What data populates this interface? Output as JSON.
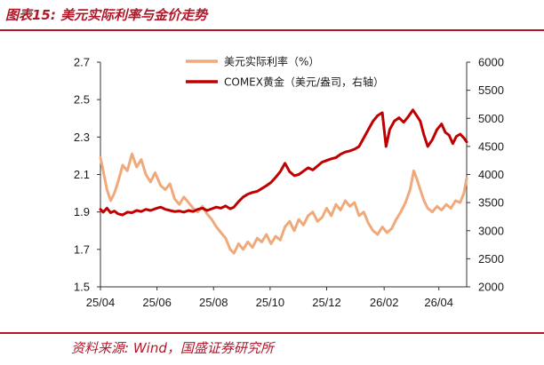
{
  "figure": {
    "title": "图表15:  美元实际利率与金价走势",
    "source": "资料来源:  Wind，国盛证券研究所"
  },
  "colors": {
    "accent": "#b0182a",
    "real_rate": "#f0a97a",
    "gold": "#c00000"
  },
  "chart_data": {
    "type": "line",
    "x_labels": [
      "25/04",
      "25/06",
      "25/08",
      "25/10",
      "25/12",
      "26/02",
      "26/04"
    ],
    "x_range": [
      "2025-04-01",
      "2026-05-01"
    ],
    "left_axis": {
      "ylim": [
        1.5,
        2.7
      ],
      "ticks": [
        "2.7",
        "2.5",
        "2.3",
        "2.1",
        "1.9",
        "1.7",
        "1.5"
      ]
    },
    "right_axis": {
      "ylim": [
        2000,
        6000
      ],
      "ticks": [
        "6000",
        "5500",
        "5000",
        "4500",
        "4000",
        "3500",
        "3000",
        "2500",
        "2000"
      ]
    },
    "legend_position": "top-center",
    "series": [
      {
        "name": "美元实际利率（%）",
        "axis": "left",
        "points": [
          [
            "2025-04-01",
            2.19
          ],
          [
            "2025-04-04",
            2.12
          ],
          [
            "2025-04-08",
            2.02
          ],
          [
            "2025-04-12",
            1.96
          ],
          [
            "2025-04-16",
            2.0
          ],
          [
            "2025-04-20",
            2.06
          ],
          [
            "2025-04-25",
            2.15
          ],
          [
            "2025-04-30",
            2.12
          ],
          [
            "2025-05-05",
            2.21
          ],
          [
            "2025-05-10",
            2.14
          ],
          [
            "2025-05-15",
            2.18
          ],
          [
            "2025-05-20",
            2.1
          ],
          [
            "2025-05-25",
            2.06
          ],
          [
            "2025-05-30",
            2.11
          ],
          [
            "2025-06-05",
            2.04
          ],
          [
            "2025-06-10",
            2.02
          ],
          [
            "2025-06-15",
            2.05
          ],
          [
            "2025-06-20",
            1.97
          ],
          [
            "2025-06-25",
            1.94
          ],
          [
            "2025-06-30",
            1.98
          ],
          [
            "2025-07-05",
            1.95
          ],
          [
            "2025-07-10",
            1.92
          ],
          [
            "2025-07-15",
            1.9
          ],
          [
            "2025-07-20",
            1.93
          ],
          [
            "2025-07-25",
            1.89
          ],
          [
            "2025-07-30",
            1.86
          ],
          [
            "2025-08-04",
            1.82
          ],
          [
            "2025-08-09",
            1.79
          ],
          [
            "2025-08-14",
            1.76
          ],
          [
            "2025-08-19",
            1.7
          ],
          [
            "2025-08-23",
            1.68
          ],
          [
            "2025-08-28",
            1.73
          ],
          [
            "2025-09-02",
            1.7
          ],
          [
            "2025-09-07",
            1.74
          ],
          [
            "2025-09-12",
            1.71
          ],
          [
            "2025-09-17",
            1.76
          ],
          [
            "2025-09-22",
            1.74
          ],
          [
            "2025-09-27",
            1.78
          ],
          [
            "2025-10-02",
            1.73
          ],
          [
            "2025-10-07",
            1.77
          ],
          [
            "2025-10-12",
            1.75
          ],
          [
            "2025-10-17",
            1.82
          ],
          [
            "2025-10-22",
            1.85
          ],
          [
            "2025-10-27",
            1.8
          ],
          [
            "2025-11-01",
            1.86
          ],
          [
            "2025-11-06",
            1.83
          ],
          [
            "2025-11-11",
            1.88
          ],
          [
            "2025-11-16",
            1.9
          ],
          [
            "2025-11-21",
            1.85
          ],
          [
            "2025-11-26",
            1.87
          ],
          [
            "2025-12-01",
            1.92
          ],
          [
            "2025-12-06",
            1.88
          ],
          [
            "2025-12-11",
            1.94
          ],
          [
            "2025-12-16",
            1.91
          ],
          [
            "2025-12-21",
            1.96
          ],
          [
            "2025-12-26",
            1.93
          ],
          [
            "2025-12-31",
            1.95
          ],
          [
            "2026-01-05",
            1.88
          ],
          [
            "2026-01-10",
            1.9
          ],
          [
            "2026-01-15",
            1.84
          ],
          [
            "2026-01-20",
            1.8
          ],
          [
            "2026-01-25",
            1.78
          ],
          [
            "2026-01-30",
            1.82
          ],
          [
            "2026-02-04",
            1.79
          ],
          [
            "2026-02-09",
            1.81
          ],
          [
            "2026-02-14",
            1.86
          ],
          [
            "2026-02-19",
            1.9
          ],
          [
            "2026-02-24",
            1.95
          ],
          [
            "2026-03-01",
            2.02
          ],
          [
            "2026-03-05",
            2.12
          ],
          [
            "2026-03-08",
            2.08
          ],
          [
            "2026-03-12",
            2.02
          ],
          [
            "2026-03-16",
            1.96
          ],
          [
            "2026-03-20",
            1.92
          ],
          [
            "2026-03-25",
            1.9
          ],
          [
            "2026-03-30",
            1.93
          ],
          [
            "2026-04-04",
            1.91
          ],
          [
            "2026-04-09",
            1.94
          ],
          [
            "2026-04-14",
            1.92
          ],
          [
            "2026-04-19",
            1.96
          ],
          [
            "2026-04-24",
            1.95
          ],
          [
            "2026-04-28",
            2.0
          ],
          [
            "2026-05-01",
            2.08
          ]
        ]
      },
      {
        "name": "COMEX黄金（美元/盎司，右轴）",
        "axis": "right",
        "points": [
          [
            "2025-04-01",
            3380
          ],
          [
            "2025-04-04",
            3330
          ],
          [
            "2025-04-08",
            3400
          ],
          [
            "2025-04-12",
            3320
          ],
          [
            "2025-04-16",
            3350
          ],
          [
            "2025-04-20",
            3300
          ],
          [
            "2025-04-25",
            3280
          ],
          [
            "2025-04-30",
            3330
          ],
          [
            "2025-05-05",
            3320
          ],
          [
            "2025-05-10",
            3360
          ],
          [
            "2025-05-15",
            3340
          ],
          [
            "2025-05-20",
            3380
          ],
          [
            "2025-05-25",
            3360
          ],
          [
            "2025-05-30",
            3390
          ],
          [
            "2025-06-05",
            3420
          ],
          [
            "2025-06-10",
            3380
          ],
          [
            "2025-06-15",
            3360
          ],
          [
            "2025-06-20",
            3340
          ],
          [
            "2025-06-25",
            3350
          ],
          [
            "2025-06-30",
            3330
          ],
          [
            "2025-07-05",
            3360
          ],
          [
            "2025-07-10",
            3340
          ],
          [
            "2025-07-15",
            3380
          ],
          [
            "2025-07-20",
            3400
          ],
          [
            "2025-07-25",
            3360
          ],
          [
            "2025-07-30",
            3390
          ],
          [
            "2025-08-04",
            3420
          ],
          [
            "2025-08-09",
            3400
          ],
          [
            "2025-08-14",
            3440
          ],
          [
            "2025-08-19",
            3390
          ],
          [
            "2025-08-23",
            3420
          ],
          [
            "2025-08-28",
            3520
          ],
          [
            "2025-09-02",
            3600
          ],
          [
            "2025-09-07",
            3650
          ],
          [
            "2025-09-12",
            3680
          ],
          [
            "2025-09-17",
            3700
          ],
          [
            "2025-09-22",
            3750
          ],
          [
            "2025-09-27",
            3800
          ],
          [
            "2025-10-02",
            3860
          ],
          [
            "2025-10-07",
            3950
          ],
          [
            "2025-10-12",
            4050
          ],
          [
            "2025-10-17",
            4200
          ],
          [
            "2025-10-22",
            4050
          ],
          [
            "2025-10-27",
            3980
          ],
          [
            "2025-11-01",
            4000
          ],
          [
            "2025-11-06",
            4060
          ],
          [
            "2025-11-11",
            4120
          ],
          [
            "2025-11-16",
            4080
          ],
          [
            "2025-11-21",
            4150
          ],
          [
            "2025-11-26",
            4220
          ],
          [
            "2025-12-01",
            4250
          ],
          [
            "2025-12-06",
            4280
          ],
          [
            "2025-12-11",
            4300
          ],
          [
            "2025-12-16",
            4360
          ],
          [
            "2025-12-21",
            4400
          ],
          [
            "2025-12-26",
            4420
          ],
          [
            "2025-12-31",
            4450
          ],
          [
            "2026-01-05",
            4500
          ],
          [
            "2026-01-10",
            4650
          ],
          [
            "2026-01-15",
            4800
          ],
          [
            "2026-01-20",
            4950
          ],
          [
            "2026-01-25",
            5050
          ],
          [
            "2026-01-30",
            5100
          ],
          [
            "2026-02-03",
            4500
          ],
          [
            "2026-02-07",
            4800
          ],
          [
            "2026-02-12",
            4950
          ],
          [
            "2026-02-17",
            5010
          ],
          [
            "2026-02-22",
            4930
          ],
          [
            "2026-02-27",
            5030
          ],
          [
            "2026-03-04",
            5150
          ],
          [
            "2026-03-08",
            5050
          ],
          [
            "2026-03-12",
            4950
          ],
          [
            "2026-03-16",
            4700
          ],
          [
            "2026-03-20",
            4500
          ],
          [
            "2026-03-25",
            4620
          ],
          [
            "2026-03-30",
            4800
          ],
          [
            "2026-04-04",
            4900
          ],
          [
            "2026-04-08",
            4750
          ],
          [
            "2026-04-12",
            4700
          ],
          [
            "2026-04-16",
            4550
          ],
          [
            "2026-04-20",
            4680
          ],
          [
            "2026-04-24",
            4720
          ],
          [
            "2026-04-28",
            4650
          ],
          [
            "2026-05-01",
            4580
          ]
        ]
      }
    ]
  }
}
